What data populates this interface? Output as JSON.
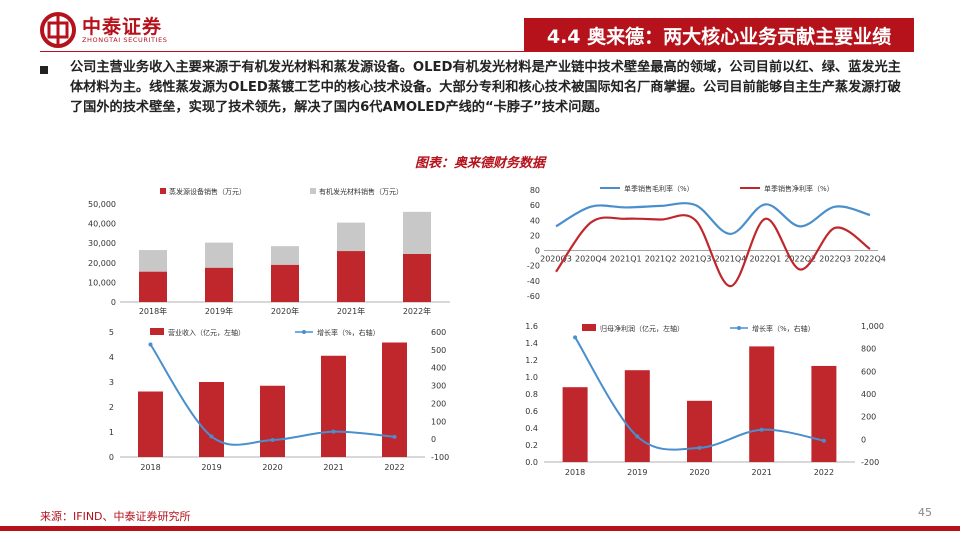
{
  "logo": {
    "cn": "中泰证券",
    "en": "ZHONGTAI SECURITIES"
  },
  "header": {
    "title": "4.4 奥来德：两大核心业务贡献主要业绩"
  },
  "body_text": "公司主营业务收入主要来源于有机发光材料和蒸发源设备。OLED有机发光材料是产业链中技术壁垒最高的领域，公司目前以红、绿、蓝发光主体材料为主。线性蒸发源为OLED蒸镀工艺中的核心技术设备。大部分专利和核心技术被国际知名厂商掌握。公司目前能够自主生产蒸发源打破了国外的技术壁垒，实现了技术领先，解决了国内6代AMOLED产线的“卡脖子”技术问题。",
  "figure_caption": "图表：奥来德财务数据",
  "colors": {
    "red": "#c0272d",
    "gray": "#c8c8c8",
    "blue": "#4a8fcd",
    "darkred": "#b5121b"
  },
  "chart_data": [
    {
      "type": "bar",
      "stacked": true,
      "categories": [
        "2018年",
        "2019年",
        "2020年",
        "2021年",
        "2022年"
      ],
      "series": [
        {
          "name": "蒸发源设备销售（万元）",
          "color": "#c0272d",
          "values": [
            15500,
            17500,
            19000,
            26000,
            24500
          ]
        },
        {
          "name": "有机发光材料销售（万元）",
          "color": "#c8c8c8",
          "values": [
            11000,
            12800,
            9500,
            14500,
            21500
          ]
        }
      ],
      "yticks": [
        "0",
        "10,000",
        "20,000",
        "30,000",
        "40,000",
        "50,000"
      ],
      "ylim": [
        0,
        50000
      ],
      "legend": "top"
    },
    {
      "type": "line",
      "categories": [
        "2020Q3",
        "2020Q4",
        "2021Q1",
        "2021Q2",
        "2021Q3",
        "2021Q4",
        "2022Q1",
        "2022Q2",
        "2022Q3",
        "2022Q4"
      ],
      "series": [
        {
          "name": "单季销售毛利率（%）",
          "color": "#4a8fcd",
          "values": [
            32,
            58,
            57,
            59,
            60,
            22,
            61,
            32,
            58,
            47
          ]
        },
        {
          "name": "单季销售净利率（%）",
          "color": "#c0272d",
          "values": [
            -28,
            37,
            42,
            41,
            40,
            -47,
            42,
            -25,
            30,
            2
          ]
        }
      ],
      "yticks": [
        "-60",
        "-40",
        "-20",
        "0",
        "20",
        "40",
        "60",
        "80"
      ],
      "ylim": [
        -60,
        80
      ],
      "legend": "top"
    },
    {
      "type": "bar",
      "categories": [
        "2018",
        "2019",
        "2020",
        "2021",
        "2022"
      ],
      "bar_series": {
        "name": "营业收入（亿元，左轴）",
        "color": "#c0272d",
        "values": [
          2.62,
          3.0,
          2.85,
          4.05,
          4.58
        ]
      },
      "line_series": {
        "name": "增长率（%，右轴）",
        "color": "#4a8fcd",
        "values": [
          530,
          15,
          -5,
          42,
          13
        ]
      },
      "yticks_left": [
        "0",
        "1",
        "2",
        "3",
        "4",
        "5"
      ],
      "yticks_right": [
        "-100",
        "0",
        "100",
        "200",
        "300",
        "400",
        "500",
        "600"
      ],
      "ylim_left": [
        0,
        5
      ],
      "ylim_right": [
        -100,
        600
      ],
      "legend": "top"
    },
    {
      "type": "bar",
      "categories": [
        "2018",
        "2019",
        "2020",
        "2021",
        "2022"
      ],
      "bar_series": {
        "name": "归母净利润（亿元，左轴）",
        "color": "#c0272d",
        "values": [
          0.88,
          1.08,
          0.72,
          1.36,
          1.13
        ]
      },
      "line_series": {
        "name": "增长率（%，右轴）",
        "color": "#4a8fcd",
        "values": [
          900,
          25,
          -75,
          85,
          -12
        ]
      },
      "yticks_left": [
        "0.0",
        "0.2",
        "0.4",
        "0.6",
        "0.8",
        "1.0",
        "1.2",
        "1.4",
        "1.6"
      ],
      "yticks_right": [
        "-200",
        "0",
        "200",
        "400",
        "600",
        "800",
        "1,000"
      ],
      "ylim_left": [
        0,
        1.6
      ],
      "ylim_right": [
        -200,
        1000
      ],
      "legend": "top"
    }
  ],
  "footer": {
    "source": "来源：IFIND、中泰证券研究所",
    "page": "45"
  }
}
